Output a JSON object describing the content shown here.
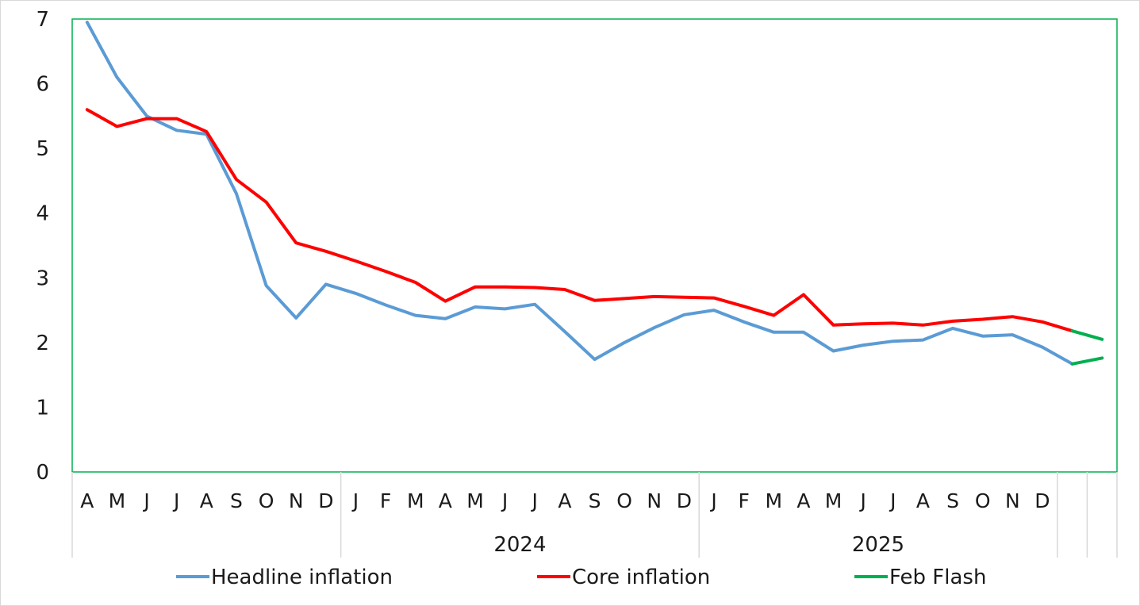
{
  "chart_data": {
    "type": "line",
    "ylim": [
      0,
      7
    ],
    "yticks": [
      "0",
      "1",
      "2",
      "3",
      "4",
      "5",
      "6",
      "7"
    ],
    "month_labels": [
      "A",
      "M",
      "J",
      "J",
      "A",
      "S",
      "O",
      "N",
      "D",
      "J",
      "F",
      "M",
      "A",
      "M",
      "J",
      "J",
      "A",
      "S",
      "O",
      "N",
      "D",
      "J",
      "F",
      "M",
      "A",
      "M",
      "J",
      "J",
      "A",
      "S",
      "O",
      "N",
      "D",
      "",
      ""
    ],
    "year_labels": [
      {
        "label": "",
        "start": 0,
        "end": 9
      },
      {
        "label": "2024",
        "start": 9,
        "end": 21
      },
      {
        "label": "2025",
        "start": 21,
        "end": 33
      },
      {
        "label": "",
        "start": 33,
        "end": 34
      },
      {
        "label": "",
        "start": 34,
        "end": 35
      }
    ],
    "series": [
      {
        "name": "Headline inflation",
        "color": "#5b9bd5",
        "values": [
          6.95,
          6.1,
          5.5,
          5.28,
          5.22,
          4.3,
          2.88,
          2.38,
          2.9,
          2.76,
          2.58,
          2.42,
          2.37,
          2.55,
          2.52,
          2.59,
          2.17,
          1.74,
          2.0,
          2.23,
          2.43,
          2.5,
          2.32,
          2.16,
          2.16,
          1.87,
          1.96,
          2.02,
          2.04,
          2.22,
          2.1,
          2.12,
          1.93,
          1.67,
          null
        ]
      },
      {
        "name": "Core inflation",
        "color": "#ff0000",
        "values": [
          5.6,
          5.34,
          5.46,
          5.46,
          5.26,
          4.52,
          4.17,
          3.54,
          3.41,
          3.26,
          3.1,
          2.93,
          2.64,
          2.86,
          2.86,
          2.85,
          2.82,
          2.65,
          2.68,
          2.71,
          2.7,
          2.69,
          2.56,
          2.42,
          2.74,
          2.27,
          2.29,
          2.3,
          2.27,
          2.33,
          2.36,
          2.4,
          2.32,
          2.18,
          null
        ]
      },
      {
        "name": "Feb Flash",
        "color": "#00b050",
        "segments": [
          {
            "x": [
              33,
              34
            ],
            "values": [
              1.67,
              1.76
            ]
          },
          {
            "x": [
              33,
              34
            ],
            "values": [
              2.18,
              2.05
            ]
          }
        ]
      }
    ],
    "colors": {
      "plot_border": "#00b050",
      "axis": "#d9d9d9"
    },
    "grid": false,
    "legend_position": "bottom"
  }
}
